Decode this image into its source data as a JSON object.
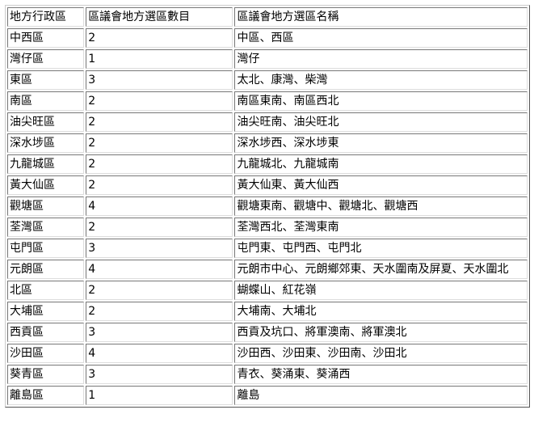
{
  "table": {
    "header": [
      "地方行政區",
      "區議會地方選區數目",
      "區議會地方選區名稱"
    ],
    "rows": [
      [
        "中西區",
        2,
        "中區、西區"
      ],
      [
        "灣仔區",
        1,
        "灣仔"
      ],
      [
        "東區",
        3,
        "太北、康灣、柴灣"
      ],
      [
        "南區",
        2,
        "南區東南、南區西北"
      ],
      [
        "油尖旺區",
        2,
        "油尖旺南、油尖旺北"
      ],
      [
        "深水埗區",
        2,
        "深水埗西、深水埗東"
      ],
      [
        "九龍城區",
        2,
        "九龍城北、九龍城南"
      ],
      [
        "黃大仙區",
        2,
        "黃大仙東、黃大仙西"
      ],
      [
        "觀塘區",
        4,
        "觀塘東南、觀塘中、觀塘北、觀塘西"
      ],
      [
        "荃灣區",
        2,
        "荃灣西北、荃灣東南"
      ],
      [
        "屯門區",
        3,
        "屯門東、屯門西、屯門北"
      ],
      [
        "元朗區",
        4,
        "元朗市中心、元朗鄉郊東、天水圍南及屏夏、天水圍北"
      ],
      [
        "北區",
        2,
        "蝴蝶山、紅花嶺"
      ],
      [
        "大埔區",
        2,
        "大埔南、大埔北"
      ],
      [
        "西貢區",
        3,
        "西貢及坑口、將軍澳南、將軍澳北"
      ],
      [
        "沙田區",
        4,
        "沙田西、沙田東、沙田南、沙田北"
      ],
      [
        "葵青區",
        3,
        "青衣、葵涌東、葵涌西"
      ],
      [
        "離島區",
        1,
        "離島"
      ]
    ]
  }
}
